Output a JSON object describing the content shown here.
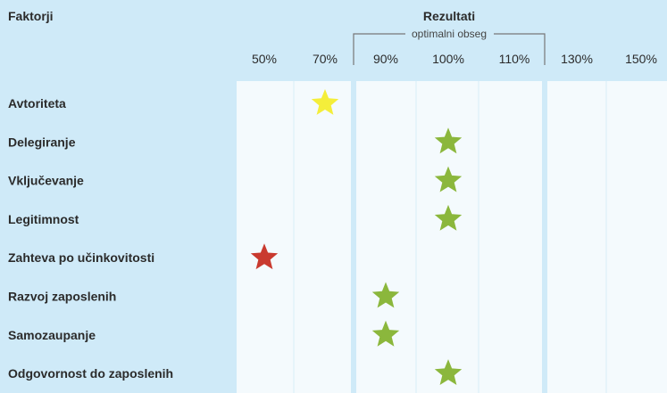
{
  "header": {
    "factors_title": "Faktorji",
    "results_title": "Rezultati",
    "optimal_range_label": "optimalni obseg"
  },
  "chart_data": {
    "type": "scatter",
    "title": "",
    "xlabel": "Rezultati",
    "ylabel": "Faktorji",
    "x_ticks": [
      "50%",
      "70%",
      "90%",
      "100%",
      "110%",
      "130%",
      "150%"
    ],
    "x_tick_values": [
      50,
      70,
      90,
      100,
      110,
      130,
      150
    ],
    "optimal_range": [
      90,
      110
    ],
    "marker": "star",
    "status_colors": {
      "optimal": "#8bb73c",
      "warning": "#f4ee3a",
      "critical": "#c93a2f"
    },
    "points": [
      {
        "factor": "Avtoriteta",
        "value": 70,
        "status": "warning"
      },
      {
        "factor": "Delegiranje",
        "value": 100,
        "status": "optimal"
      },
      {
        "factor": "Vključevanje",
        "value": 100,
        "status": "optimal"
      },
      {
        "factor": "Legitimnost",
        "value": 100,
        "status": "optimal"
      },
      {
        "factor": "Zahteva po učinkovitosti",
        "value": 50,
        "status": "critical"
      },
      {
        "factor": "Razvoj zaposlenih",
        "value": 90,
        "status": "optimal"
      },
      {
        "factor": "Samozaupanje",
        "value": 90,
        "status": "optimal"
      },
      {
        "factor": "Odgovornost do zaposlenih",
        "value": 100,
        "status": "optimal"
      }
    ]
  }
}
